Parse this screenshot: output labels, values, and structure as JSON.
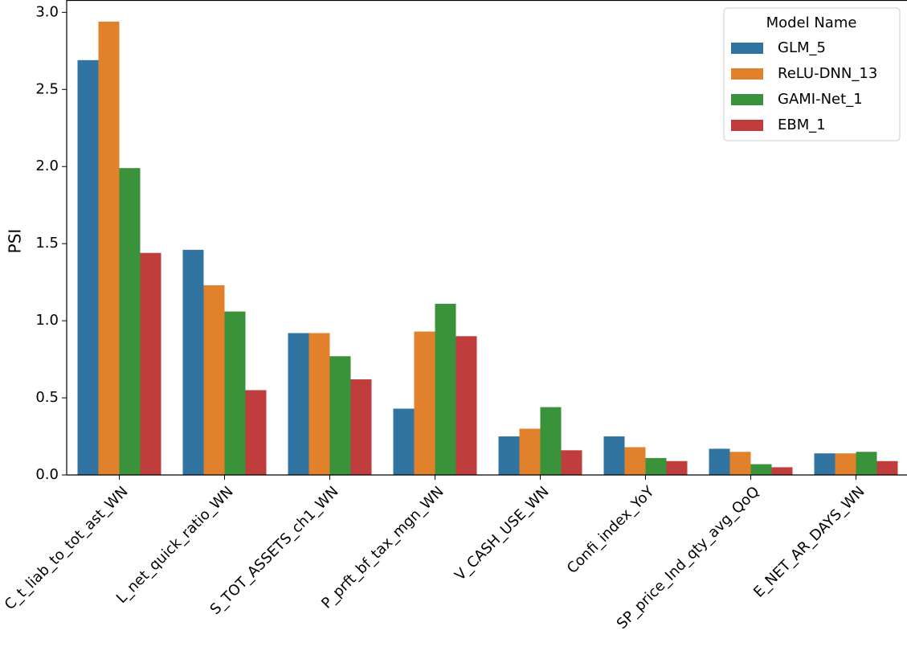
{
  "chart_data": {
    "type": "grouped-bar",
    "y_label": "PSI",
    "categories": [
      "C_t_liab_to_tot_ast_WN",
      "L_net_quick_ratio_WN",
      "S_TOT_ASSETS_ch1_WN",
      "P_prft_bf_tax_mgn_WN",
      "V_CASH_USE_WN",
      "Confi_index_YoY",
      "SP_price_Ind_qty_avg_QoQ",
      "E_NET_AR_DAYS_WN"
    ],
    "series": [
      {
        "name": "GLM_5",
        "color": "#3274a1",
        "values": [
          2.69,
          1.46,
          0.92,
          0.43,
          0.25,
          0.25,
          0.17,
          0.14
        ]
      },
      {
        "name": "ReLU-DNN_13",
        "color": "#e1812c",
        "values": [
          2.94,
          1.23,
          0.92,
          0.93,
          0.3,
          0.18,
          0.15,
          0.14
        ]
      },
      {
        "name": "GAMI-Net_1",
        "color": "#3a923a",
        "values": [
          1.99,
          1.06,
          0.77,
          1.11,
          0.44,
          0.11,
          0.07,
          0.15
        ]
      },
      {
        "name": "EBM_1",
        "color": "#c03d3e",
        "values": [
          1.44,
          0.55,
          0.62,
          0.9,
          0.16,
          0.09,
          0.05,
          0.09
        ]
      }
    ],
    "legend_title": "Model Name",
    "legend": "upper right",
    "ylim": [
      0,
      3.08
    ],
    "yticks": [
      {
        "value": 0,
        "label": "0.0"
      },
      {
        "value": 0.5,
        "label": "0.5"
      },
      {
        "value": 1,
        "label": "1.0"
      },
      {
        "value": 1.5,
        "label": "1.5"
      },
      {
        "value": 2,
        "label": "2.0"
      },
      {
        "value": 2.5,
        "label": "2.5"
      },
      {
        "value": 3,
        "label": "3.0"
      }
    ]
  }
}
